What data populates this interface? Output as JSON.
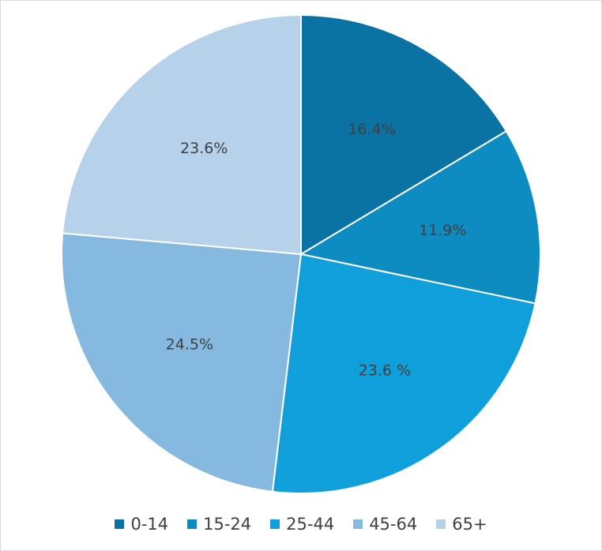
{
  "chart_data": {
    "type": "pie",
    "categories": [
      "0-14",
      "15-24",
      "25-44",
      "45-64",
      "65+"
    ],
    "values": [
      16.4,
      11.9,
      23.6,
      24.5,
      23.6
    ],
    "labels": [
      "16.4%",
      "11.9%",
      "23.6 %",
      "24.5%",
      "23.6%"
    ],
    "colors": [
      "#0a73a4",
      "#0d8cc2",
      "#0f9fda",
      "#86b9df",
      "#b6d1ea"
    ],
    "legend_position": "bottom"
  }
}
